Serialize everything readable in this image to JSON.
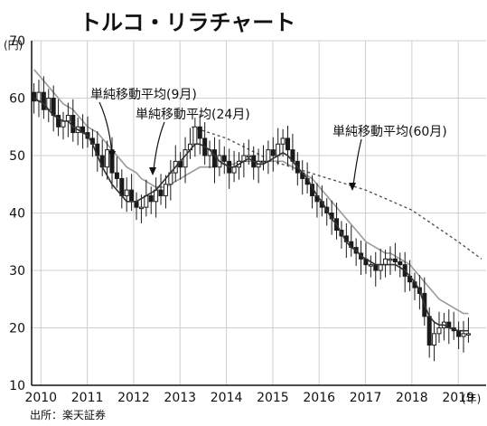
{
  "chart_data": {
    "type": "candlestick",
    "title": "トルコ・リラチャート",
    "y_unit": "(円)",
    "x_unit": "(年)",
    "source": "出所：楽天証券",
    "ylim": [
      10,
      70
    ],
    "y_ticks": [
      "70",
      "60",
      "50",
      "40",
      "30",
      "20",
      "10"
    ],
    "x_ticks": [
      "2010",
      "2011",
      "2012",
      "2013",
      "2014",
      "2015",
      "2016",
      "2017",
      "2018",
      "2019"
    ],
    "xlim": [
      2009.8,
      2019.6
    ],
    "grid": true,
    "colors": {
      "candle": "#1a1a1a",
      "ma9": "#333333",
      "ma24": "#9a9a9a",
      "ma60": "#555555",
      "grid": "#cfcfcf"
    },
    "annotations": [
      {
        "label": "単純移動平均(9月)",
        "series": "ma9"
      },
      {
        "label": "単純移動平均(24月)",
        "series": "ma24"
      },
      {
        "label": "単純移動平均(60月)",
        "series": "ma60"
      }
    ],
    "candles_close": [
      59.5,
      61,
      58,
      60,
      57,
      55,
      56,
      57,
      54,
      55,
      54,
      53,
      52,
      50,
      48,
      51,
      47,
      46,
      43,
      44,
      42,
      41,
      41,
      43,
      42,
      44,
      43,
      45,
      47,
      49,
      48,
      51,
      52,
      55,
      53,
      50,
      51,
      48,
      50,
      49,
      47,
      48,
      49,
      50,
      50,
      48,
      49,
      49,
      51,
      50,
      52,
      53,
      51,
      49,
      47,
      46,
      45,
      43,
      42,
      41,
      40,
      39,
      37,
      36,
      35,
      34,
      33,
      32,
      31,
      31,
      30,
      31,
      32,
      32,
      31.5,
      31,
      29,
      28,
      27,
      26,
      22,
      17,
      19,
      20,
      21,
      20,
      19.5,
      18.5,
      19,
      19
    ],
    "ma9": [
      60,
      59.5,
      59,
      58,
      57,
      56.5,
      56,
      56,
      55,
      54.5,
      54,
      53.5,
      52,
      50,
      48,
      46.5,
      45,
      44,
      43,
      42,
      42,
      42,
      42.5,
      43,
      43.5,
      44,
      45,
      46,
      47,
      48,
      49,
      50,
      51,
      52,
      52,
      51.5,
      51,
      50,
      49,
      48.5,
      48,
      48,
      48.5,
      49,
      49.5,
      49,
      48.5,
      48.5,
      49,
      49.5,
      50,
      50.5,
      50,
      49,
      48,
      47,
      46,
      44.5,
      43,
      42,
      40.5,
      39,
      38,
      36.5,
      35,
      34,
      33.5,
      32.5,
      32,
      31.5,
      31,
      31,
      31,
      31,
      31,
      30.5,
      30,
      29,
      28,
      26.5,
      24,
      22,
      21,
      20.5,
      20.5,
      20,
      19.8,
      19.5,
      19.5,
      19.5
    ],
    "ma24": [
      65,
      64,
      63,
      62,
      61,
      60,
      59,
      58.5,
      58,
      57,
      56,
      55,
      54.5,
      54,
      53,
      52,
      51,
      50,
      49,
      48,
      47.5,
      47,
      46,
      45.5,
      45,
      44.5,
      44.5,
      44.5,
      45,
      45.5,
      46,
      46.5,
      47,
      47.5,
      48,
      48,
      48,
      48,
      48.5,
      48.5,
      48.5,
      48.5,
      49,
      49,
      49,
      49,
      49,
      49,
      49,
      49,
      49,
      49,
      48.5,
      48,
      47.5,
      47,
      46.5,
      46,
      45,
      44,
      43,
      42,
      41,
      40,
      39,
      38,
      37,
      36,
      35,
      34.5,
      34,
      33.5,
      33,
      33,
      32.5,
      32,
      31.5,
      31,
      30,
      29,
      28,
      27,
      26,
      25,
      24.5,
      24,
      23.5,
      23,
      22.5,
      22.5
    ],
    "ma60_x": [
      2013.25,
      2014.0,
      2015.0,
      2016.0,
      2017.0,
      2018.0,
      2019.0,
      2019.5
    ],
    "ma60": [
      55,
      53,
      49,
      46.5,
      44,
      40.5,
      35,
      32
    ]
  }
}
